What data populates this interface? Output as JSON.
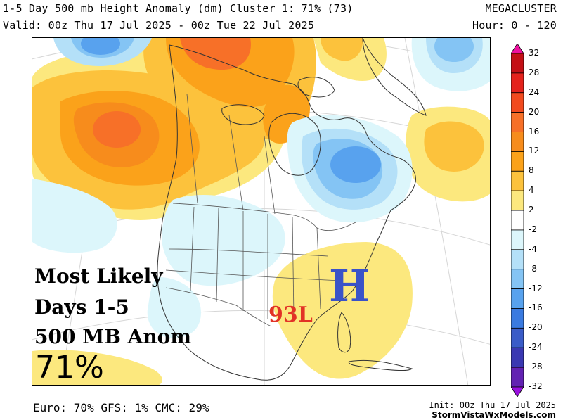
{
  "header": {
    "title": "1-5 Day 500 mb Height Anomaly (dm) Cluster 1: 71% (73)",
    "valid": "Valid: 00z Thu 17 Jul 2025 - 00z Tue 22 Jul 2025",
    "brand": "MEGACLUSTER",
    "hours": "Hour: 0 - 120"
  },
  "overlay": {
    "line1": "Most Likely",
    "line2": "Days 1-5",
    "line3": "500 MB Anom",
    "percent": "71%",
    "high_label": "H",
    "low_label": "93L",
    "high_color": "#3a52c8",
    "low_color": "#e23226"
  },
  "colorbar": {
    "labels": [
      "32",
      "28",
      "24",
      "20",
      "16",
      "12",
      "8",
      "4",
      "2",
      "-2",
      "-4",
      "-8",
      "-12",
      "-16",
      "-20",
      "-24",
      "-28",
      "-32"
    ],
    "colors": [
      "#ee12a0",
      "#c41016",
      "#e4221c",
      "#f24a1e",
      "#f77028",
      "#f78c1c",
      "#fba21a",
      "#fcc23c",
      "#fce87e",
      "#ffffff",
      "#dcf6fb",
      "#b4e0f8",
      "#84c4f4",
      "#58a2ee",
      "#3a7ae0",
      "#3a5cc8",
      "#3a38b2",
      "#6222b2",
      "#9a10e0"
    ]
  },
  "footer": {
    "models": "Euro: 70% GFS: 1% CMC: 29%",
    "init": "Init: 00z Thu 17 Jul 2025",
    "site": "StormVistaWxModels.com"
  }
}
